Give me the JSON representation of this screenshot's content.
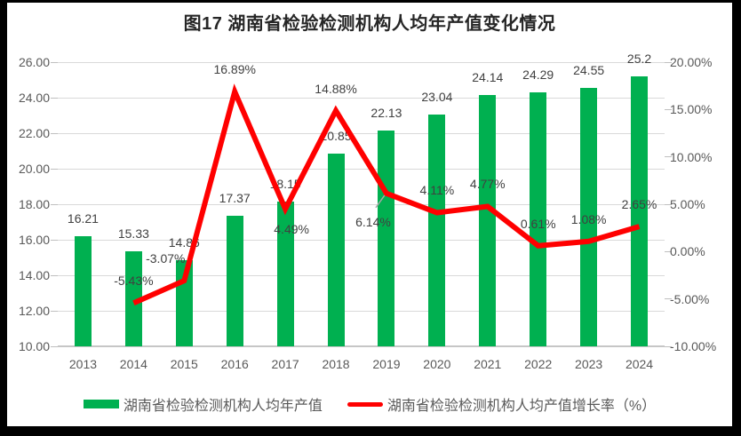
{
  "title": "图17 湖南省检验检测机构人均年产值变化情况",
  "chart_data": {
    "type": "bar",
    "subtype": "combo-bar-line",
    "title": "图17 湖南省检验检测机构人均年产值变化情况",
    "categories": [
      "2013",
      "2014",
      "2015",
      "2016",
      "2017",
      "2018",
      "2019",
      "2020",
      "2021",
      "2022",
      "2023",
      "2024"
    ],
    "series": [
      {
        "name": "湖南省检验检测机构人均年产值",
        "type": "bar",
        "axis": "left",
        "color": "#00B050",
        "values": [
          16.21,
          15.33,
          14.86,
          17.37,
          18.15,
          20.85,
          22.13,
          23.04,
          24.14,
          24.29,
          24.55,
          25.2
        ],
        "labels": [
          "16.21",
          "15.33",
          "14.86",
          "17.37",
          "18.15",
          "20.85",
          "22.13",
          "23.04",
          "24.14",
          "24.29",
          "24.55",
          "25.2"
        ]
      },
      {
        "name": "湖南省检验检测机构人均产值增长率（%）",
        "type": "line",
        "axis": "right",
        "color": "#FF0000",
        "values": [
          null,
          -5.43,
          -3.07,
          16.89,
          4.49,
          14.88,
          6.14,
          4.11,
          4.77,
          0.61,
          1.08,
          2.65
        ],
        "labels": [
          null,
          "-5.43%",
          "-3.07%",
          "16.89%",
          "4.49%",
          "14.88%",
          "6.14%",
          "4.11%",
          "4.77%",
          "0.61%",
          "1.08%",
          "2.65%"
        ]
      }
    ],
    "left_axis": {
      "min": 10,
      "max": 26,
      "step": 2,
      "ticks": [
        "26.00",
        "24.00",
        "22.00",
        "20.00",
        "18.00",
        "16.00",
        "14.00",
        "12.00",
        "10.00"
      ]
    },
    "right_axis": {
      "min": -10,
      "max": 20,
      "step": 5,
      "ticks": [
        "20.00%",
        "15.00%",
        "10.00%",
        "5.00%",
        "0.00%",
        "-5.00%",
        "-10.00%"
      ]
    },
    "grid": true,
    "legend_position": "bottom",
    "colors": {
      "bar": "#00B050",
      "line": "#FF0000",
      "gridline": "#D9D9D9",
      "label": "#404040",
      "axis_label": "#595959"
    }
  }
}
